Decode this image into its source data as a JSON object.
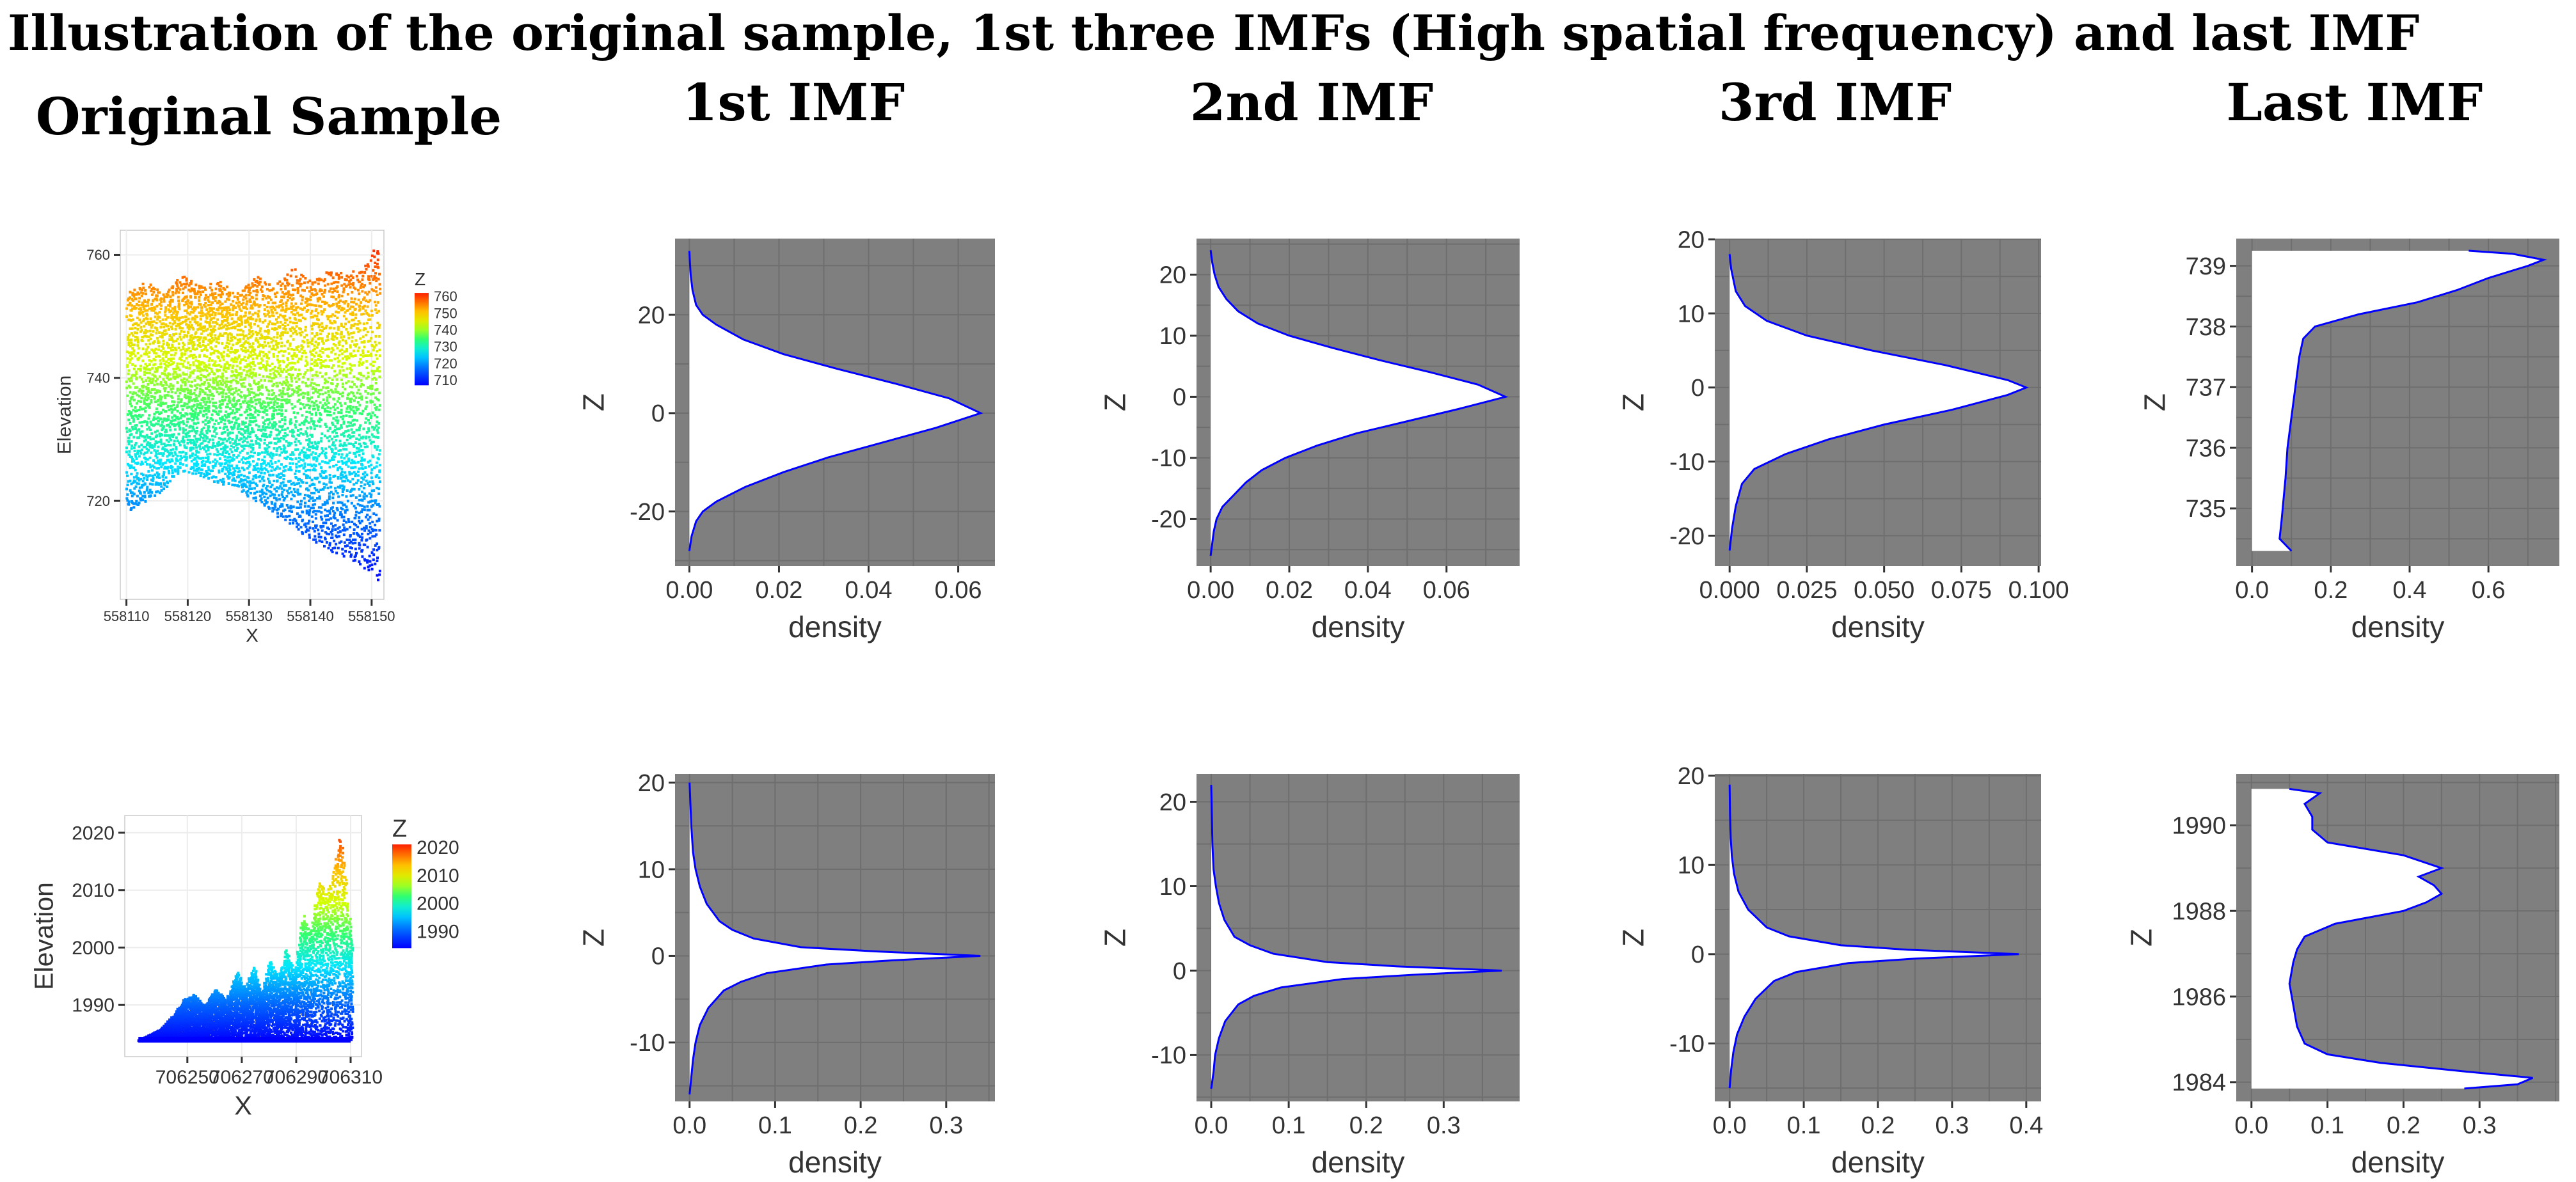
{
  "figure": {
    "title": "Illustration of the original sample, 1st three IMFs (High spatial frequency) and last IMF",
    "column_headers": [
      "Original Sample",
      "1st IMF",
      "2nd IMF",
      "3rd IMF",
      "Last IMF"
    ],
    "colors": {
      "panel_bg": "#7f7f7f",
      "density_fill": "#ffffff",
      "density_line": "#0000ff",
      "grid": "#6e6e6e"
    }
  },
  "chart_data": [
    {
      "type": "scatter",
      "row": 1,
      "column": "Original Sample",
      "xlabel": "X",
      "ylabel": "Elevation",
      "xlim": [
        558109,
        558152
      ],
      "ylim": [
        704,
        764
      ],
      "xticks": [
        "558110",
        "558120",
        "558130",
        "558140",
        "558150"
      ],
      "xtick_values": [
        558110,
        558120,
        558130,
        558140,
        558150
      ],
      "yticks": [
        "720",
        "740",
        "760"
      ],
      "ytick_values": [
        720,
        740,
        760
      ],
      "legend": {
        "title": "Z",
        "placement": "right",
        "labels": [
          "760",
          "750",
          "740",
          "730",
          "720",
          "710"
        ],
        "values": [
          760,
          750,
          740,
          730,
          720,
          710
        ]
      },
      "zlim": [
        707,
        762
      ],
      "top_profile": [
        [
          558110,
          754
        ],
        [
          558113,
          756
        ],
        [
          558116,
          754
        ],
        [
          558119,
          757
        ],
        [
          558122,
          755
        ],
        [
          558125,
          756
        ],
        [
          558128,
          754
        ],
        [
          558131,
          757
        ],
        [
          558134,
          755
        ],
        [
          558137,
          758
        ],
        [
          558140,
          756
        ],
        [
          558143,
          758
        ],
        [
          558146,
          757
        ],
        [
          558149,
          759
        ],
        [
          558151,
          762
        ]
      ],
      "bottom_profile": [
        [
          558110,
          718
        ],
        [
          558113,
          720
        ],
        [
          558116,
          722
        ],
        [
          558119,
          725
        ],
        [
          558122,
          724
        ],
        [
          558125,
          723
        ],
        [
          558128,
          722
        ],
        [
          558131,
          720
        ],
        [
          558134,
          718
        ],
        [
          558137,
          716
        ],
        [
          558140,
          714
        ],
        [
          558143,
          712
        ],
        [
          558146,
          711
        ],
        [
          558149,
          709
        ],
        [
          558151,
          707
        ]
      ],
      "grid": true
    },
    {
      "type": "area",
      "row": 1,
      "column": "1st IMF",
      "orientation": "horizontal-density",
      "xlabel": "density",
      "ylabel": "Z",
      "xlim": [
        -0.0032,
        0.0682
      ],
      "ylim": [
        -31.1,
        35.5
      ],
      "xticks": [
        "0.00",
        "0.02",
        "0.04",
        "0.06"
      ],
      "xtick_values": [
        0,
        0.02,
        0.04,
        0.06
      ],
      "yticks": [
        "-20",
        "0",
        "20"
      ],
      "ytick_values": [
        -20,
        0,
        20
      ],
      "z": [
        -28,
        -25,
        -22,
        -20,
        -18,
        -15,
        -12,
        -9,
        -6,
        -3,
        0,
        3,
        6,
        9,
        12,
        15,
        18,
        20,
        22,
        25,
        28,
        31,
        33
      ],
      "density": [
        0,
        0.0005,
        0.0015,
        0.003,
        0.006,
        0.0125,
        0.021,
        0.031,
        0.043,
        0.055,
        0.065,
        0.058,
        0.046,
        0.033,
        0.021,
        0.012,
        0.006,
        0.003,
        0.0015,
        0.0007,
        0.0003,
        0.0001,
        0
      ],
      "grid": true
    },
    {
      "type": "area",
      "row": 1,
      "column": "2nd IMF",
      "orientation": "horizontal-density",
      "xlabel": "density",
      "ylabel": "Z",
      "xlim": [
        -0.0036,
        0.0786
      ],
      "ylim": [
        -27.7,
        25.9
      ],
      "xticks": [
        "0.00",
        "0.02",
        "0.04",
        "0.06"
      ],
      "xtick_values": [
        0,
        0.02,
        0.04,
        0.06
      ],
      "yticks": [
        "-20",
        "-10",
        "0",
        "10",
        "20"
      ],
      "ytick_values": [
        -20,
        -10,
        0,
        10,
        20
      ],
      "z": [
        -26,
        -22,
        -20,
        -18,
        -16,
        -14,
        -12,
        -10,
        -8,
        -6,
        -4,
        -2,
        0,
        2,
        4,
        6,
        8,
        10,
        12,
        14,
        16,
        18,
        20,
        22,
        24
      ],
      "density": [
        0,
        0.0008,
        0.0015,
        0.003,
        0.006,
        0.009,
        0.013,
        0.019,
        0.027,
        0.037,
        0.05,
        0.063,
        0.075,
        0.068,
        0.056,
        0.043,
        0.031,
        0.02,
        0.012,
        0.007,
        0.004,
        0.002,
        0.001,
        0.0004,
        0
      ],
      "grid": true
    },
    {
      "type": "area",
      "row": 1,
      "column": "3rd IMF",
      "orientation": "horizontal-density",
      "xlabel": "density",
      "ylabel": "Z",
      "xlim": [
        -0.0048,
        0.1008
      ],
      "ylim": [
        -24.1,
        20.1
      ],
      "xticks": [
        "0.000",
        "0.025",
        "0.050",
        "0.075",
        "0.100"
      ],
      "xtick_values": [
        0,
        0.025,
        0.05,
        0.075,
        0.1
      ],
      "yticks": [
        "-20",
        "-10",
        "0",
        "10",
        "20"
      ],
      "ytick_values": [
        -20,
        -10,
        0,
        10,
        20
      ],
      "z": [
        -22,
        -19,
        -16,
        -13,
        -11,
        -9,
        -7,
        -5,
        -3,
        -1,
        0,
        1,
        3,
        5,
        7,
        9,
        11,
        13,
        16,
        18
      ],
      "density": [
        0,
        0.0008,
        0.002,
        0.004,
        0.008,
        0.018,
        0.032,
        0.05,
        0.072,
        0.09,
        0.096,
        0.09,
        0.07,
        0.046,
        0.025,
        0.012,
        0.005,
        0.002,
        0.0005,
        0
      ],
      "grid": true
    },
    {
      "type": "area",
      "row": 1,
      "column": "Last IMF",
      "orientation": "horizontal-density",
      "xlabel": "density",
      "ylabel": "Z",
      "xlim": [
        -0.04,
        0.78
      ],
      "ylim": [
        734.05,
        739.45
      ],
      "xticks": [
        "0.0",
        "0.2",
        "0.4",
        "0.6"
      ],
      "xtick_values": [
        0,
        0.2,
        0.4,
        0.6
      ],
      "yticks": [
        "735",
        "736",
        "737",
        "738",
        "739"
      ],
      "ytick_values": [
        735,
        736,
        737,
        738,
        739
      ],
      "z": [
        734.3,
        734.5,
        734.8,
        735.5,
        736.0,
        736.5,
        737.0,
        737.5,
        737.8,
        738.0,
        738.2,
        738.4,
        738.6,
        738.8,
        739.0,
        739.1,
        739.2,
        739.25
      ],
      "density": [
        0.1,
        0.07,
        0.075,
        0.085,
        0.09,
        0.1,
        0.11,
        0.12,
        0.13,
        0.16,
        0.27,
        0.42,
        0.52,
        0.6,
        0.7,
        0.74,
        0.66,
        0.55
      ],
      "grid": true
    },
    {
      "type": "scatter",
      "row": 2,
      "column": "Original Sample",
      "xlabel": "X",
      "ylabel": "Elevation",
      "xlim": [
        706227,
        706314
      ],
      "ylim": [
        1981,
        2023
      ],
      "xticks": [
        "706250",
        "706270",
        "706290",
        "706310"
      ],
      "xtick_values": [
        706250,
        706270,
        706290,
        706310
      ],
      "yticks": [
        "1990",
        "2000",
        "2010",
        "2020"
      ],
      "ytick_values": [
        1990,
        2000,
        2010,
        2020
      ],
      "legend": {
        "title": "Z",
        "placement": "right",
        "labels": [
          "2020",
          "2010",
          "2000",
          "1990"
        ],
        "values": [
          2020,
          2010,
          2000,
          1990
        ]
      },
      "zlim": [
        1984,
        2021
      ],
      "baseline": 1984,
      "top_profile": [
        [
          706232,
          1984
        ],
        [
          706236,
          1985
        ],
        [
          706240,
          1986
        ],
        [
          706244,
          1988
        ],
        [
          706248,
          1991
        ],
        [
          706252,
          1992
        ],
        [
          706256,
          1990
        ],
        [
          706260,
          1993
        ],
        [
          706264,
          1991
        ],
        [
          706268,
          1996
        ],
        [
          706271,
          1993
        ],
        [
          706274,
          1997
        ],
        [
          706277,
          1992
        ],
        [
          706280,
          1998
        ],
        [
          706283,
          1995
        ],
        [
          706286,
          2000
        ],
        [
          706289,
          1996
        ],
        [
          706292,
          2006
        ],
        [
          706295,
          2003
        ],
        [
          706298,
          2012
        ],
        [
          706301,
          2010
        ],
        [
          706304,
          2015
        ],
        [
          706306,
          2020
        ],
        [
          706308,
          2012
        ],
        [
          706310,
          2002
        ]
      ],
      "grid": true
    },
    {
      "type": "area",
      "row": 2,
      "column": "1st IMF",
      "orientation": "horizontal-density",
      "xlabel": "density",
      "ylabel": "Z",
      "xlim": [
        -0.017,
        0.357
      ],
      "ylim": [
        -16.8,
        21.0
      ],
      "xticks": [
        "0.0",
        "0.1",
        "0.2",
        "0.3"
      ],
      "xtick_values": [
        0,
        0.1,
        0.2,
        0.3
      ],
      "yticks": [
        "-10",
        "0",
        "10",
        "20"
      ],
      "ytick_values": [
        -10,
        0,
        10,
        20
      ],
      "z": [
        -16,
        -14,
        -12,
        -10,
        -8,
        -6,
        -4,
        -3,
        -2,
        -1,
        -0.5,
        0,
        0.5,
        1,
        2,
        3,
        4,
        6,
        8,
        10,
        12,
        15,
        20
      ],
      "density": [
        0,
        0.002,
        0.004,
        0.007,
        0.012,
        0.022,
        0.04,
        0.06,
        0.09,
        0.16,
        0.24,
        0.34,
        0.22,
        0.13,
        0.075,
        0.05,
        0.035,
        0.02,
        0.012,
        0.007,
        0.004,
        0.002,
        0
      ],
      "grid": true
    },
    {
      "type": "area",
      "row": 2,
      "column": "2nd IMF",
      "orientation": "horizontal-density",
      "xlabel": "density",
      "ylabel": "Z",
      "xlim": [
        -0.019,
        0.398
      ],
      "ylim": [
        -15.5,
        23.3
      ],
      "xticks": [
        "0.0",
        "0.1",
        "0.2",
        "0.3"
      ],
      "xtick_values": [
        0,
        0.1,
        0.2,
        0.3
      ],
      "yticks": [
        "-10",
        "0",
        "10",
        "20"
      ],
      "ytick_values": [
        -10,
        0,
        10,
        20
      ],
      "z": [
        -14,
        -12,
        -10,
        -8,
        -6,
        -4,
        -3,
        -2,
        -1,
        -0.5,
        0,
        0.5,
        1,
        2,
        3,
        4,
        6,
        8,
        10,
        12,
        15,
        20,
        22
      ],
      "density": [
        0,
        0.003,
        0.005,
        0.01,
        0.018,
        0.035,
        0.055,
        0.09,
        0.17,
        0.26,
        0.375,
        0.24,
        0.15,
        0.08,
        0.05,
        0.03,
        0.017,
        0.01,
        0.006,
        0.003,
        0.0015,
        0.0005,
        0
      ],
      "grid": true
    },
    {
      "type": "area",
      "row": 2,
      "column": "3rd IMF",
      "orientation": "horizontal-density",
      "xlabel": "density",
      "ylabel": "Z",
      "xlim": [
        -0.02,
        0.42
      ],
      "ylim": [
        -16.5,
        20.2
      ],
      "xticks": [
        "0.0",
        "0.1",
        "0.2",
        "0.3",
        "0.4"
      ],
      "xtick_values": [
        0,
        0.1,
        0.2,
        0.3,
        0.4
      ],
      "yticks": [
        "-10",
        "0",
        "10",
        "20"
      ],
      "ytick_values": [
        -10,
        0,
        10,
        20
      ],
      "z": [
        -15,
        -13,
        -11,
        -9,
        -7,
        -5,
        -3,
        -2,
        -1,
        -0.5,
        0,
        0.5,
        1,
        2,
        3,
        5,
        7,
        9,
        11,
        13,
        16,
        19
      ],
      "density": [
        0,
        0.002,
        0.005,
        0.01,
        0.02,
        0.035,
        0.06,
        0.09,
        0.16,
        0.25,
        0.39,
        0.24,
        0.15,
        0.08,
        0.05,
        0.025,
        0.012,
        0.006,
        0.003,
        0.0015,
        0.0005,
        0
      ],
      "grid": true
    },
    {
      "type": "area",
      "row": 2,
      "column": "Last IMF",
      "orientation": "horizontal-density",
      "xlabel": "density",
      "ylabel": "Z",
      "xlim": [
        -0.02,
        0.405
      ],
      "ylim": [
        1983.55,
        1991.2
      ],
      "xticks": [
        "0.0",
        "0.1",
        "0.2",
        "0.3"
      ],
      "xtick_values": [
        0,
        0.1,
        0.2,
        0.3
      ],
      "yticks": [
        "1984",
        "1986",
        "1988",
        "1990"
      ],
      "ytick_values": [
        1984,
        1986,
        1988,
        1990
      ],
      "z": [
        1983.85,
        1983.95,
        1984.1,
        1984.25,
        1984.45,
        1984.65,
        1984.9,
        1985.3,
        1985.8,
        1986.3,
        1986.8,
        1987.1,
        1987.4,
        1987.7,
        1988.0,
        1988.2,
        1988.4,
        1988.6,
        1988.8,
        1989.0,
        1989.3,
        1989.6,
        1989.9,
        1990.2,
        1990.5,
        1990.75,
        1990.85
      ],
      "density": [
        0.28,
        0.35,
        0.37,
        0.28,
        0.17,
        0.1,
        0.07,
        0.06,
        0.055,
        0.05,
        0.055,
        0.06,
        0.07,
        0.11,
        0.2,
        0.23,
        0.25,
        0.24,
        0.22,
        0.25,
        0.2,
        0.1,
        0.08,
        0.08,
        0.07,
        0.09,
        0.05
      ],
      "grid": true
    }
  ]
}
